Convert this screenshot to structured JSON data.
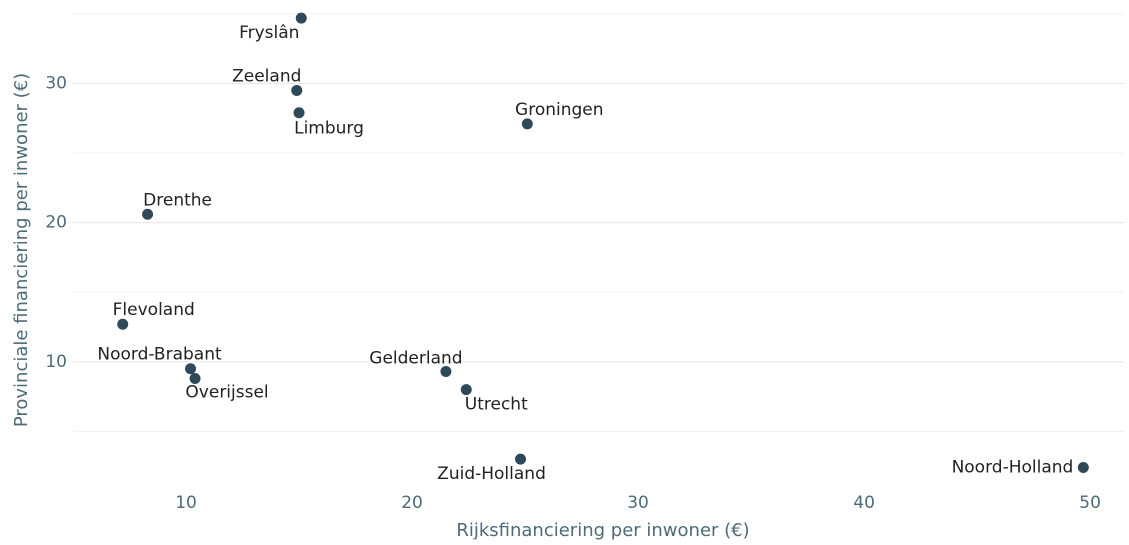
{
  "chart_data": {
    "type": "scatter",
    "x_label": "Rijksfinanciering per inwoner (€)",
    "y_label": "Provinciale financiering per inwoner (€)",
    "labels": [
      "Fryslân",
      "Zeeland",
      "Limburg",
      "Groningen",
      "Drenthe",
      "Flevoland",
      "Noord-Brabant",
      "Overijssel",
      "Gelderland",
      "Utrecht",
      "Zuid-Holland",
      "Noord-Holland"
    ],
    "x": [
      15.1,
      14.9,
      15.0,
      25.1,
      8.3,
      7.2,
      10.2,
      10.4,
      21.5,
      22.4,
      24.8,
      49.7
    ],
    "values": [
      34.7,
      29.5,
      27.9,
      27.1,
      20.6,
      12.7,
      9.5,
      8.8,
      9.3,
      8.0,
      3.0,
      2.4
    ],
    "color": "#2e4a5a",
    "xlim": [
      5,
      51.5
    ],
    "xticks": [
      10,
      20,
      30,
      40,
      50
    ],
    "ylim": [
      1,
      36
    ],
    "yticks": [
      10,
      20,
      30
    ],
    "minor_yticks": [
      5,
      15,
      25,
      35
    ],
    "grid": true
  }
}
